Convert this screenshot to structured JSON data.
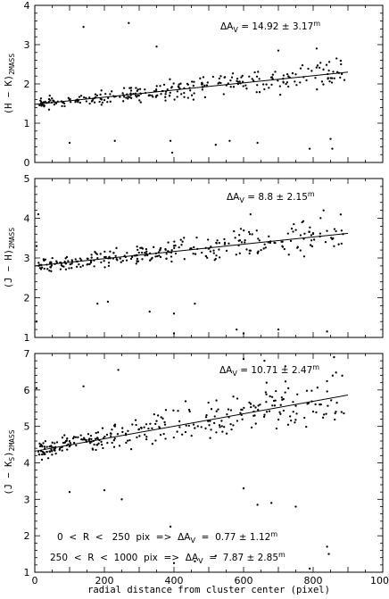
{
  "chart_data": [
    {
      "type": "scatter",
      "ylabel": "(H - K)2MASS",
      "ylabel_main": "(H − K)",
      "ylabel_sub": "2MASS",
      "xlim": [
        0,
        1000
      ],
      "ylim": [
        0,
        4
      ],
      "x_ticks": [
        0,
        100,
        200,
        300,
        400,
        500,
        600,
        700,
        800,
        900,
        1000
      ],
      "y_ticks": [
        0,
        1,
        2,
        3,
        4
      ],
      "y_tick_labels": [
        "0",
        "1",
        "2",
        "3",
        "4"
      ],
      "fit_line": {
        "x": [
          0,
          900
        ],
        "y": [
          1.48,
          2.3
        ]
      },
      "annotation": "ΔAV = 14.92 ± 3.17m",
      "annotation_parts": {
        "delta": "ΔA",
        "sub": "V",
        "eq": " = 14.92 ± 3.17",
        "sup": "m"
      },
      "outliers": [
        [
          140,
          3.45
        ],
        [
          270,
          3.55
        ],
        [
          350,
          2.95
        ],
        [
          100,
          0.5
        ],
        [
          230,
          0.55
        ],
        [
          390,
          0.55
        ],
        [
          395,
          0.25
        ],
        [
          520,
          0.45
        ],
        [
          560,
          0.55
        ],
        [
          640,
          0.5
        ],
        [
          790,
          0.35
        ],
        [
          850,
          0.6
        ],
        [
          855,
          0.35
        ],
        [
          880,
          2.5
        ],
        [
          810,
          2.9
        ],
        [
          700,
          2.85
        ]
      ],
      "trend": {
        "a": 1.48,
        "b": 0.00091,
        "x_range": [
          10,
          890
        ],
        "count": 280,
        "spread_near": 0.1,
        "spread_far": 0.32,
        "seed": 11
      }
    },
    {
      "type": "scatter",
      "ylabel": "(J - H)2MASS",
      "ylabel_main": "(J − H)",
      "ylabel_sub": "2MASS",
      "xlim": [
        0,
        1000
      ],
      "ylim": [
        1,
        5
      ],
      "x_ticks": [
        0,
        100,
        200,
        300,
        400,
        500,
        600,
        700,
        800,
        900,
        1000
      ],
      "y_ticks": [
        1,
        2,
        3,
        4,
        5
      ],
      "y_tick_labels": [
        "1",
        "2",
        "3",
        "4",
        "5"
      ],
      "fit_line": {
        "x": [
          0,
          900
        ],
        "y": [
          2.8,
          3.62
        ]
      },
      "annotation": "ΔAV = 8.8 ± 2.15m",
      "annotation_parts": {
        "delta": "ΔA",
        "sub": "V",
        "eq": " = 8.8 ± 2.15",
        "sup": "m"
      },
      "outliers": [
        [
          10,
          4.1
        ],
        [
          5,
          3.3
        ],
        [
          5,
          1.4
        ],
        [
          180,
          1.85
        ],
        [
          210,
          1.9
        ],
        [
          330,
          1.65
        ],
        [
          400,
          1.6
        ],
        [
          400,
          1.1
        ],
        [
          460,
          1.85
        ],
        [
          580,
          1.2
        ],
        [
          600,
          1.1
        ],
        [
          700,
          1.2
        ],
        [
          830,
          4.2
        ],
        [
          840,
          1.15
        ],
        [
          620,
          4.1
        ]
      ],
      "trend": {
        "a": 2.8,
        "b": 0.00091,
        "x_range": [
          10,
          890
        ],
        "count": 280,
        "spread_near": 0.12,
        "spread_far": 0.4,
        "seed": 23
      }
    },
    {
      "type": "scatter",
      "ylabel": "(J - KS)2MASS",
      "ylabel_main": "(J − K",
      "ylabel_s": "S",
      "ylabel_close": ")",
      "ylabel_sub": "2MASS",
      "xlabel": "radial distance from cluster center (pixel)",
      "xlim": [
        0,
        1000
      ],
      "ylim": [
        1,
        7
      ],
      "x_ticks": [
        0,
        200,
        400,
        600,
        800,
        1000
      ],
      "x_tick_labels": [
        "0",
        "200",
        "400",
        "600",
        "800",
        "1000"
      ],
      "y_ticks": [
        1,
        2,
        3,
        4,
        5,
        6,
        7
      ],
      "y_tick_labels": [
        "1",
        "2",
        "3",
        "4",
        "5",
        "6",
        "7"
      ],
      "fit_line": {
        "x": [
          0,
          900
        ],
        "y": [
          4.32,
          5.86
        ]
      },
      "annotation": "ΔAV = 10.71 ± 2.47m",
      "annotation_parts": {
        "delta": "ΔA",
        "sub": "V",
        "eq": " = 10.71 ± 2.47",
        "sup": "m"
      },
      "extra_annotations": [
        {
          "text": "0 < R < 250 pix => ΔAV = 0.77 ± 1.12m",
          "pre": "0  <  R  <   250  pix  =>  ΔA",
          "sub": "V",
          "eq": "  =  0.77 ± 1.12",
          "sup": "m"
        },
        {
          "text": "250 < R < 1000 pix => ΔAV = 7.87 ± 2.85m",
          "pre": "250  <  R  <  1000  pix  =>  ΔA",
          "sub": "V",
          "eq": "  =  7.87 ± 2.85",
          "sup": "m"
        }
      ],
      "outliers": [
        [
          5,
          6.05
        ],
        [
          140,
          6.1
        ],
        [
          240,
          6.55
        ],
        [
          100,
          3.2
        ],
        [
          200,
          3.25
        ],
        [
          250,
          3.0
        ],
        [
          390,
          2.25
        ],
        [
          400,
          1.25
        ],
        [
          460,
          1.3
        ],
        [
          520,
          1.45
        ],
        [
          600,
          3.3
        ],
        [
          640,
          2.85
        ],
        [
          680,
          2.9
        ],
        [
          750,
          2.8
        ],
        [
          790,
          1.1
        ],
        [
          840,
          1.7
        ],
        [
          845,
          1.5
        ],
        [
          860,
          6.9
        ],
        [
          720,
          6.65
        ],
        [
          600,
          6.85
        ],
        [
          660,
          6.8
        ]
      ],
      "trend": {
        "a": 4.32,
        "b": 0.00171,
        "x_range": [
          10,
          890
        ],
        "count": 300,
        "spread_near": 0.2,
        "spread_far": 0.6,
        "seed": 37
      }
    }
  ]
}
